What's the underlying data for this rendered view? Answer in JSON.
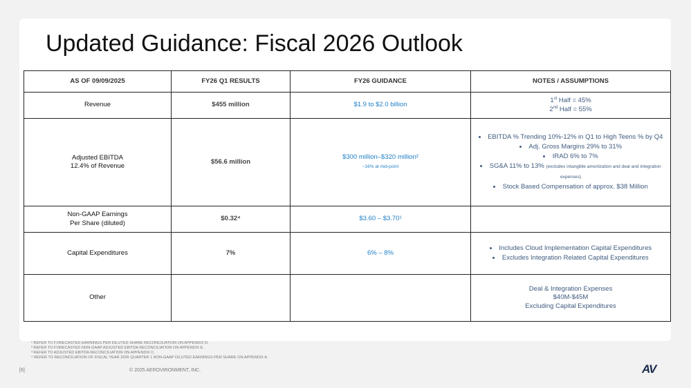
{
  "title": "Updated Guidance: Fiscal 2026 Outlook",
  "table": {
    "header": [
      "AS OF 09/09/2025",
      "FY26 Q1 RESULTS",
      "FY26 GUIDANCE",
      "NOTES / ASSUMPTIONS"
    ],
    "rows": [
      [
        {
          "lines": [
            "Revenue"
          ]
        },
        {
          "lines": [
            "$455 million"
          ]
        },
        {
          "lines": [
            "$1.9 to $2.0 billion"
          ]
        },
        {
          "lines": [
            [
              "1",
              {
                "sup": "st"
              },
              " Half = 45%"
            ],
            [
              "2",
              {
                "sup": "nd"
              },
              " Half = 55%"
            ]
          ]
        }
      ],
      [
        {
          "lines": [
            "Adjusted EBITDA",
            "12.4% of Revenue"
          ]
        },
        {
          "lines": [
            "$56.6 million"
          ]
        },
        {
          "lines": [
            "$300 million–$320 million²",
            [
              {
                "small": "~16% at mid-point"
              }
            ]
          ]
        },
        {
          "bullets": [
            "EBITDA % Trending 10%-12% in Q1 to High Teens % by Q4",
            "Adj. Gross Margins 29% to 31%",
            "IRAD 6% to 7%",
            [
              "SG&A 11% to 13% ",
              {
                "small": "(excludes intangible amortization and deal and integration expenses)"
              }
            ],
            "Stock Based Compensation of approx. $38 Million"
          ]
        }
      ],
      [
        {
          "lines": [
            "Non-GAAP Earnings",
            "Per Share (diluted)"
          ]
        },
        {
          "lines": [
            "$0.32⁴"
          ]
        },
        {
          "lines": [
            "$3.60 – $3.70¹"
          ]
        },
        {
          "lines": []
        }
      ],
      [
        {
          "lines": [
            "Capital Expenditures"
          ]
        },
        {
          "lines": [
            "7%"
          ]
        },
        {
          "lines": [
            "6% – 8%"
          ]
        },
        {
          "bullets": [
            "Includes Cloud Implementation Capital Expenditures",
            "Excludes Integration Related Capital Expenditures"
          ]
        }
      ],
      [
        {
          "lines": [
            "Other"
          ]
        },
        {
          "lines": []
        },
        {
          "lines": []
        },
        {
          "lines": [
            "Deal & Integration Expenses",
            "$40M-$45M",
            "Excluding Capital Expenditures"
          ]
        }
      ]
    ]
  },
  "footnotes": [
    "¹ REFER TO FORECASTED EARNINGS PER DILUTED SHARE RECONCILIATION ON APPENDIX D.",
    "² REFER TO FORECASTED NON-GAAP ADJUSTED EBITDA RECONCILIATION ON APPENDIX E.",
    "³ REFER TO ADJUSTED EBITDA RECONCILIATION ON APPENDIX C.",
    "⁴ REFER TO RECONCILIATION OF FISCAL YEAR 2026 QUARTER 1 NON-GAAP DILUTED EARNINGS PER SHARE ON APPENDIX A."
  ],
  "page_number": "[6]",
  "copyright": "© 2025 AEROVIRONMENT, INC.",
  "logo": "AV"
}
